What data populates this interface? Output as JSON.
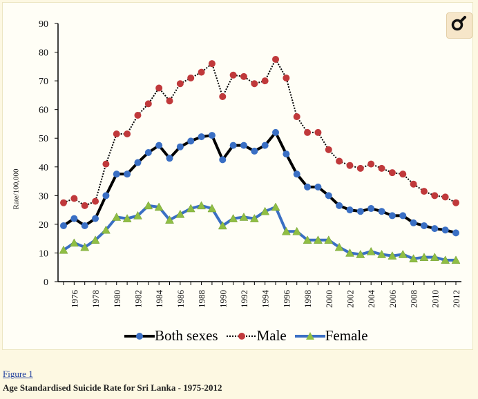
{
  "figure": {
    "link_label": "Figure 1",
    "caption": "Age Standardised Suicide Rate for Sri Lanka - 1975-2012"
  },
  "zoom_button": {
    "icon": "magnify-icon"
  },
  "chart_data": {
    "type": "line",
    "title": "",
    "xlabel": "",
    "ylabel": "Rate/100,000",
    "ylim": [
      0,
      90
    ],
    "yticks": [
      0,
      10,
      20,
      30,
      40,
      50,
      60,
      70,
      80,
      90
    ],
    "ytick_labels": [
      "0",
      "10",
      "20",
      "30",
      "40",
      "50",
      "60",
      "70",
      "80",
      "90"
    ],
    "grid": false,
    "legend_position": "bottom",
    "x": [
      1975,
      1976,
      1977,
      1978,
      1979,
      1980,
      1981,
      1982,
      1983,
      1984,
      1985,
      1986,
      1987,
      1988,
      1989,
      1990,
      1991,
      1992,
      1993,
      1994,
      1995,
      1996,
      1997,
      1998,
      1999,
      2000,
      2001,
      2002,
      2003,
      2004,
      2005,
      2006,
      2007,
      2008,
      2009,
      2010,
      2011,
      2012
    ],
    "xtick_labels": [
      "1976",
      "1978",
      "1980",
      "1982",
      "1984",
      "1986",
      "1988",
      "1990",
      "1992",
      "1994",
      "1996",
      "1998",
      "2000",
      "2002",
      "2004",
      "2006",
      "2008",
      "2010",
      "2012"
    ],
    "series": [
      {
        "name": "Both sexes",
        "color": "#3a6fc4",
        "line_color": "#000000",
        "marker": "circle",
        "values": [
          19.5,
          22,
          19.5,
          22,
          30,
          37.5,
          37.5,
          41.5,
          45,
          47.5,
          43,
          47,
          49,
          50.5,
          51,
          42.5,
          47.5,
          47.5,
          45.5,
          47.5,
          52,
          44.5,
          37.5,
          33,
          33,
          30,
          26.5,
          25,
          24.5,
          25.5,
          24.5,
          23,
          23,
          20.5,
          19.5,
          18.5,
          18,
          17
        ]
      },
      {
        "name": "Male",
        "color": "#c0393b",
        "line_color": "#000000",
        "marker": "circle",
        "dashed": true,
        "values": [
          27.5,
          29,
          26.5,
          28,
          41,
          51.5,
          51.5,
          58,
          62,
          67.5,
          63,
          69,
          71,
          73,
          76,
          64.5,
          72,
          71.5,
          69,
          70,
          77.5,
          71,
          57.5,
          52,
          52,
          46,
          42,
          40.5,
          39.5,
          41,
          39.5,
          38,
          37.5,
          34,
          31.5,
          30,
          29.5,
          27.5
        ]
      },
      {
        "name": "Female",
        "color": "#8fbe44",
        "line_color": "#3a6fc4",
        "marker": "triangle",
        "values": [
          11,
          13.5,
          12,
          14.5,
          18,
          22.5,
          22,
          23,
          26.5,
          26,
          21.5,
          23.5,
          25.5,
          26.5,
          25.5,
          19.5,
          22,
          22.5,
          22,
          24.5,
          26,
          17.5,
          17.5,
          14.5,
          14.5,
          14.5,
          12,
          10,
          9.5,
          10.5,
          9.5,
          9,
          9.5,
          8,
          8.5,
          8.5,
          7.5,
          7.5
        ]
      }
    ]
  }
}
